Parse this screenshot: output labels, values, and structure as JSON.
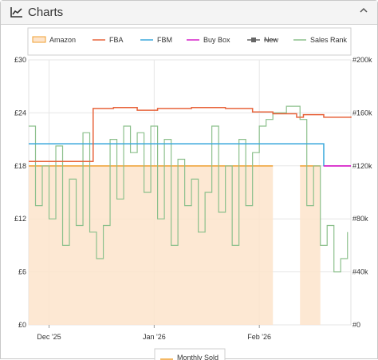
{
  "panel": {
    "title": "Charts",
    "icons": {
      "title": "line-chart-icon",
      "collapse": "chevron-up-icon"
    }
  },
  "chart_data": {
    "type": "line",
    "legend_position": "top",
    "grid": true,
    "legend": [
      {
        "name": "Amazon",
        "color": "#f0a030",
        "style": "area"
      },
      {
        "name": "FBA",
        "color": "#e8643c",
        "style": "line"
      },
      {
        "name": "FBM",
        "color": "#3aa8dc",
        "style": "line"
      },
      {
        "name": "Buy Box",
        "color": "#d620c8",
        "style": "line"
      },
      {
        "name": "New",
        "color": "#666666",
        "style": "line-marker",
        "strike": true
      },
      {
        "name": "Sales Rank",
        "color": "#8cc08c",
        "style": "line"
      }
    ],
    "x_ticks": [
      "Dec '25",
      "Jan '26",
      "Feb '26"
    ],
    "xlim": [
      "2025-11-25",
      "2026-02-28"
    ],
    "y_left": {
      "ticks": [
        "£0",
        "£6",
        "£12",
        "£18",
        "£24",
        "£30"
      ],
      "values": [
        0,
        6,
        12,
        18,
        24,
        30
      ],
      "ylim": [
        0,
        30
      ]
    },
    "y_right": {
      "ticks": [
        "#0",
        "#40k",
        "#80k",
        "#120k",
        "#160k",
        "#200k"
      ],
      "values": [
        0,
        40000,
        80000,
        120000,
        160000,
        200000
      ],
      "ylim": [
        0,
        200000
      ]
    },
    "series": {
      "amazon": {
        "segments": [
          {
            "x": [
              "2025-11-25",
              "2026-02-05"
            ],
            "y": [
              17.99,
              17.99
            ]
          },
          {
            "x": [
              "2026-02-13",
              "2026-02-19"
            ],
            "y": [
              17.99,
              17.99
            ]
          }
        ]
      },
      "fba": {
        "x": [
          "2025-11-25",
          "2025-12-10",
          "2025-12-14",
          "2025-12-14",
          "2025-12-20",
          "2025-12-27",
          "2026-01-02",
          "2026-01-12",
          "2026-01-22",
          "2026-01-30",
          "2026-02-05",
          "2026-02-12",
          "2026-02-14",
          "2026-02-20",
          "2026-02-28"
        ],
        "y": [
          18.5,
          18.5,
          18.5,
          24.5,
          24.6,
          24.3,
          24.5,
          24.6,
          24.5,
          24.1,
          23.9,
          23.5,
          23.8,
          23.5,
          23.6
        ]
      },
      "fbm": {
        "x": [
          "2025-11-25",
          "2026-02-20",
          "2026-02-20",
          "2026-02-28"
        ],
        "y": [
          20.5,
          20.4,
          18.0,
          18.0
        ]
      },
      "buybox": {
        "x": [
          "2026-02-20",
          "2026-02-28"
        ],
        "y": [
          17.99,
          17.99
        ]
      },
      "sales_rank": {
        "x": [
          "2025-11-25",
          "2025-11-27",
          "2025-11-29",
          "2025-12-01",
          "2025-12-03",
          "2025-12-05",
          "2025-12-07",
          "2025-12-09",
          "2025-12-11",
          "2025-12-13",
          "2025-12-15",
          "2025-12-17",
          "2025-12-19",
          "2025-12-21",
          "2025-12-23",
          "2025-12-25",
          "2025-12-27",
          "2025-12-29",
          "2025-12-31",
          "2026-01-02",
          "2026-01-04",
          "2026-01-06",
          "2026-01-08",
          "2026-01-10",
          "2026-01-12",
          "2026-01-14",
          "2026-01-16",
          "2026-01-18",
          "2026-01-20",
          "2026-01-22",
          "2026-01-24",
          "2026-01-26",
          "2026-01-28",
          "2026-01-30",
          "2026-02-01",
          "2026-02-03",
          "2026-02-05",
          "2026-02-07",
          "2026-02-09",
          "2026-02-11",
          "2026-02-13",
          "2026-02-15",
          "2026-02-17",
          "2026-02-19",
          "2026-02-21",
          "2026-02-23",
          "2026-02-25",
          "2026-02-27"
        ],
        "y": [
          150000,
          90000,
          120000,
          80000,
          135000,
          60000,
          110000,
          75000,
          145000,
          70000,
          50000,
          75000,
          140000,
          95000,
          150000,
          130000,
          145000,
          100000,
          150000,
          80000,
          140000,
          60000,
          125000,
          90000,
          110000,
          70000,
          100000,
          150000,
          85000,
          120000,
          60000,
          140000,
          90000,
          130000,
          150000,
          155000,
          160000,
          160000,
          165000,
          165000,
          155000,
          90000,
          120000,
          60000,
          75000,
          40000,
          50000,
          70000
        ]
      }
    }
  },
  "bottom_legend": {
    "name": "Monthly Sold",
    "color": "#f0a030"
  }
}
